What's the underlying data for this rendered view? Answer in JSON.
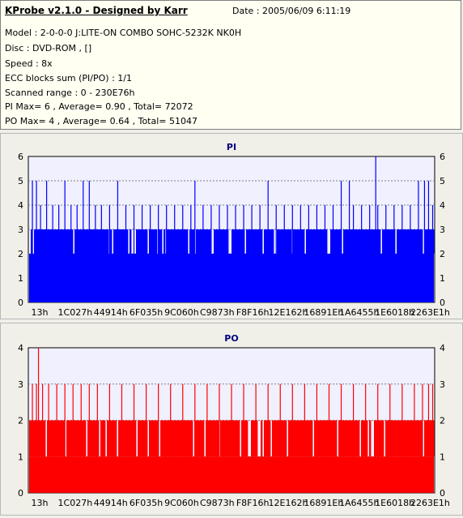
{
  "header": {
    "title": "KProbe v2.1.0 - Designed by Karr",
    "date": "Date : 2005/06/09 6:11:19",
    "lines": [
      "Model : 2-0-0-0 J:LITE-ON COMBO SOHC-5232K NK0H",
      "Disc : DVD-ROM ,  []",
      "Speed : 8x",
      "ECC blocks sum (PI/PO) : 1/1",
      "Scanned range : 0 - 230E76h",
      "PI Max= 6 , Average= 0.90 , Total= 72072",
      "PO Max= 4 , Average= 0.64 , Total= 51047"
    ]
  },
  "chart_data": [
    {
      "type": "bar",
      "title": "PI",
      "color": "#0000ff",
      "plot_bg": "#f0f0ff",
      "ylim": [
        0,
        6
      ],
      "yticks": [
        0,
        1,
        2,
        3,
        4,
        5,
        6
      ],
      "xticks": [
        "13h",
        "1C027h",
        "44914h",
        "6F035h",
        "9C060h",
        "C9873h",
        "F8F16h",
        "12E162h",
        "16891Eh",
        "1A6455h",
        "1E6018h",
        "2263E1h"
      ],
      "baseline": 2,
      "plateau": 3,
      "max": 6,
      "average": 0.9,
      "spikes": [
        {
          "x": 0.01,
          "y": 5
        },
        {
          "x": 0.02,
          "y": 5
        },
        {
          "x": 0.03,
          "y": 4
        },
        {
          "x": 0.045,
          "y": 5
        },
        {
          "x": 0.06,
          "y": 4
        },
        {
          "x": 0.075,
          "y": 4
        },
        {
          "x": 0.09,
          "y": 5
        },
        {
          "x": 0.105,
          "y": 4
        },
        {
          "x": 0.12,
          "y": 4
        },
        {
          "x": 0.135,
          "y": 5
        },
        {
          "x": 0.15,
          "y": 5
        },
        {
          "x": 0.165,
          "y": 4
        },
        {
          "x": 0.18,
          "y": 4
        },
        {
          "x": 0.2,
          "y": 4
        },
        {
          "x": 0.22,
          "y": 5
        },
        {
          "x": 0.24,
          "y": 4
        },
        {
          "x": 0.26,
          "y": 4
        },
        {
          "x": 0.28,
          "y": 4
        },
        {
          "x": 0.3,
          "y": 4
        },
        {
          "x": 0.32,
          "y": 4
        },
        {
          "x": 0.34,
          "y": 4
        },
        {
          "x": 0.36,
          "y": 4
        },
        {
          "x": 0.38,
          "y": 4
        },
        {
          "x": 0.4,
          "y": 4
        },
        {
          "x": 0.41,
          "y": 5
        },
        {
          "x": 0.43,
          "y": 4
        },
        {
          "x": 0.45,
          "y": 4
        },
        {
          "x": 0.47,
          "y": 4
        },
        {
          "x": 0.49,
          "y": 4
        },
        {
          "x": 0.51,
          "y": 4
        },
        {
          "x": 0.53,
          "y": 4
        },
        {
          "x": 0.55,
          "y": 4
        },
        {
          "x": 0.57,
          "y": 4
        },
        {
          "x": 0.59,
          "y": 5
        },
        {
          "x": 0.61,
          "y": 4
        },
        {
          "x": 0.63,
          "y": 4
        },
        {
          "x": 0.65,
          "y": 4
        },
        {
          "x": 0.67,
          "y": 4
        },
        {
          "x": 0.69,
          "y": 4
        },
        {
          "x": 0.71,
          "y": 4
        },
        {
          "x": 0.73,
          "y": 4
        },
        {
          "x": 0.75,
          "y": 4
        },
        {
          "x": 0.77,
          "y": 5
        },
        {
          "x": 0.79,
          "y": 5
        },
        {
          "x": 0.8,
          "y": 4
        },
        {
          "x": 0.82,
          "y": 4
        },
        {
          "x": 0.84,
          "y": 4
        },
        {
          "x": 0.855,
          "y": 6
        },
        {
          "x": 0.86,
          "y": 4
        },
        {
          "x": 0.88,
          "y": 4
        },
        {
          "x": 0.9,
          "y": 4
        },
        {
          "x": 0.92,
          "y": 4
        },
        {
          "x": 0.94,
          "y": 4
        },
        {
          "x": 0.96,
          "y": 5
        },
        {
          "x": 0.975,
          "y": 5
        },
        {
          "x": 0.985,
          "y": 5
        },
        {
          "x": 0.995,
          "y": 4
        }
      ]
    },
    {
      "type": "bar",
      "title": "PO",
      "color": "#ff0000",
      "plot_bg": "#f0f0ff",
      "ylim": [
        0,
        4
      ],
      "yticks": [
        0,
        1,
        2,
        3,
        4
      ],
      "xticks": [
        "13h",
        "1C027h",
        "44914h",
        "6F035h",
        "9C060h",
        "C9873h",
        "F8F16h",
        "12E162h",
        "16891Eh",
        "1A6455h",
        "1E6018h",
        "2263E1h"
      ],
      "baseline": 1,
      "plateau": 2,
      "max": 4,
      "average": 0.64,
      "spikes": [
        {
          "x": 0.01,
          "y": 3
        },
        {
          "x": 0.02,
          "y": 3
        },
        {
          "x": 0.025,
          "y": 4
        },
        {
          "x": 0.035,
          "y": 3
        },
        {
          "x": 0.05,
          "y": 3
        },
        {
          "x": 0.07,
          "y": 3
        },
        {
          "x": 0.09,
          "y": 3
        },
        {
          "x": 0.11,
          "y": 3
        },
        {
          "x": 0.13,
          "y": 3
        },
        {
          "x": 0.15,
          "y": 3
        },
        {
          "x": 0.17,
          "y": 3
        },
        {
          "x": 0.2,
          "y": 3
        },
        {
          "x": 0.23,
          "y": 3
        },
        {
          "x": 0.26,
          "y": 3
        },
        {
          "x": 0.29,
          "y": 3
        },
        {
          "x": 0.32,
          "y": 3
        },
        {
          "x": 0.35,
          "y": 3
        },
        {
          "x": 0.38,
          "y": 3
        },
        {
          "x": 0.41,
          "y": 3
        },
        {
          "x": 0.44,
          "y": 3
        },
        {
          "x": 0.47,
          "y": 3
        },
        {
          "x": 0.5,
          "y": 3
        },
        {
          "x": 0.53,
          "y": 3
        },
        {
          "x": 0.56,
          "y": 3
        },
        {
          "x": 0.59,
          "y": 3
        },
        {
          "x": 0.62,
          "y": 3
        },
        {
          "x": 0.65,
          "y": 3
        },
        {
          "x": 0.68,
          "y": 3
        },
        {
          "x": 0.71,
          "y": 3
        },
        {
          "x": 0.74,
          "y": 3
        },
        {
          "x": 0.77,
          "y": 3
        },
        {
          "x": 0.8,
          "y": 3
        },
        {
          "x": 0.83,
          "y": 3
        },
        {
          "x": 0.86,
          "y": 3
        },
        {
          "x": 0.89,
          "y": 3
        },
        {
          "x": 0.92,
          "y": 3
        },
        {
          "x": 0.95,
          "y": 3
        },
        {
          "x": 0.97,
          "y": 3
        },
        {
          "x": 0.985,
          "y": 3
        },
        {
          "x": 0.995,
          "y": 3
        }
      ]
    }
  ]
}
